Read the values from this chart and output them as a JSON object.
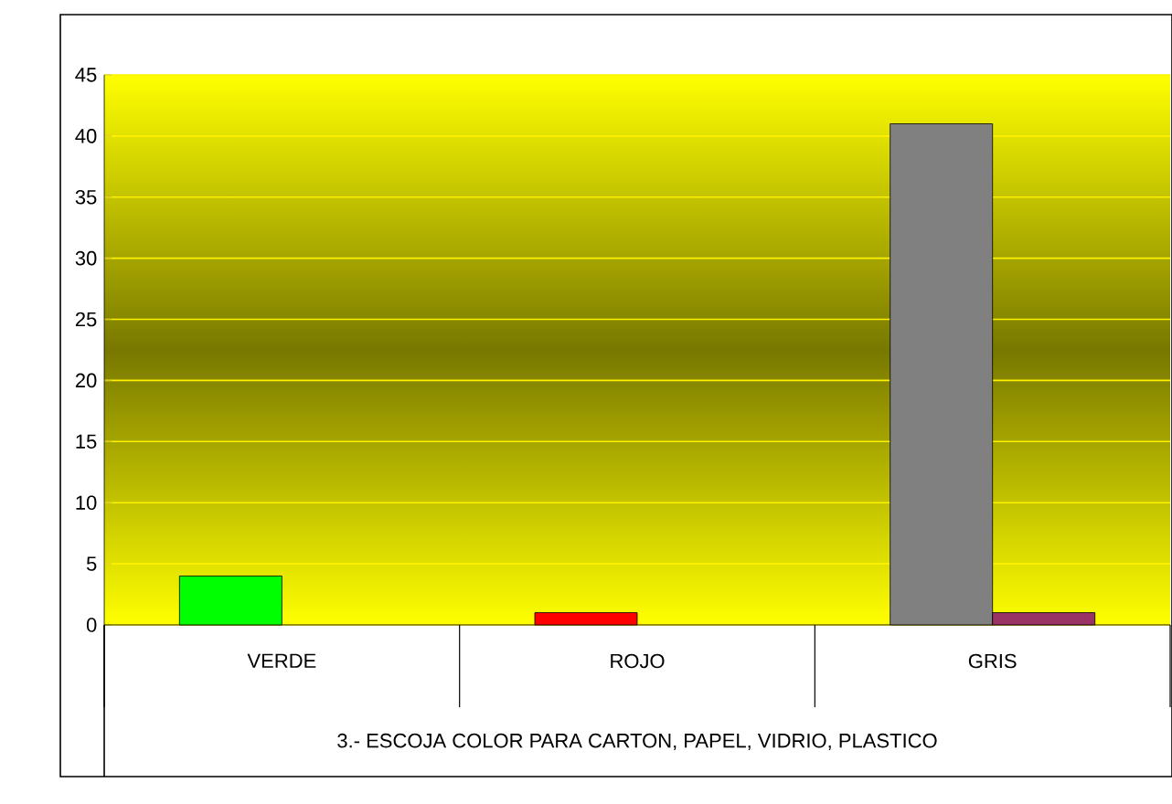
{
  "chart_data": {
    "type": "bar",
    "categories": [
      "VERDE",
      "ROJO",
      "GRIS"
    ],
    "xlabel": "3.- ESCOJA COLOR PARA CARTON, PAPEL, VIDRIO, PLASTICO",
    "series": [
      {
        "colors": [
          "#00ff00",
          "#ff0000",
          "#808080"
        ],
        "values": [
          4,
          1,
          41
        ]
      },
      {
        "color": "#993366",
        "values": [
          null,
          null,
          1
        ]
      }
    ],
    "ylim": [
      0,
      45
    ],
    "yticks": [
      0,
      5,
      10,
      15,
      20,
      25,
      30,
      35,
      40,
      45
    ],
    "grid": "y"
  }
}
